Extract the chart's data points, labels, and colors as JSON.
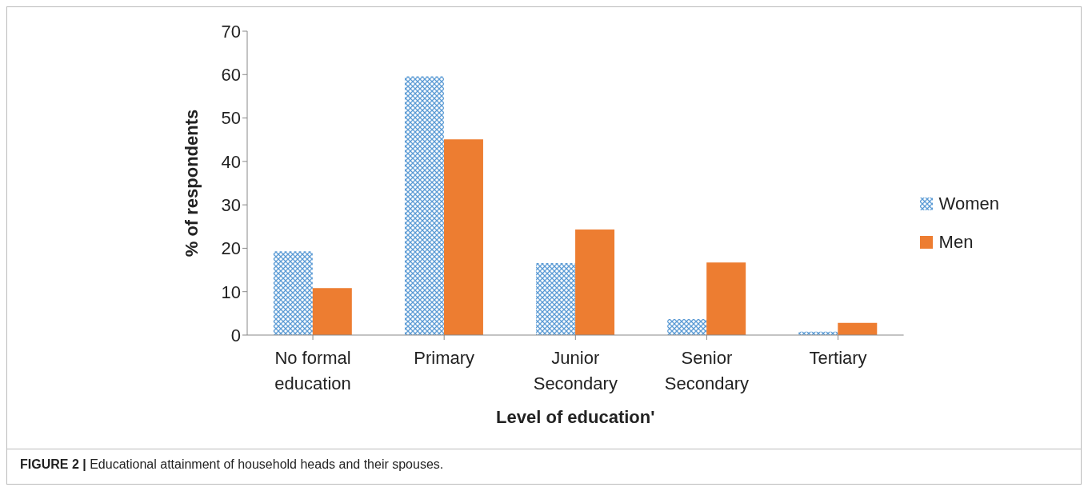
{
  "chart_data": {
    "type": "bar",
    "xlabel": "Level of education'",
    "ylabel": "% of respondents",
    "categories": [
      "No formal education",
      "Primary",
      "Junior Secondary",
      "Senior Secondary",
      "Tertiary"
    ],
    "series": [
      {
        "name": "Women",
        "color": "#5b9bd5",
        "values": [
          19.3,
          59.6,
          16.6,
          3.7,
          0.8
        ]
      },
      {
        "name": "Men",
        "color": "#ed7d31",
        "values": [
          10.8,
          45.1,
          24.3,
          16.7,
          2.8
        ]
      }
    ],
    "ylim": [
      0,
      70
    ],
    "yticks": [
      0,
      10,
      20,
      30,
      40,
      50,
      60,
      70
    ],
    "grid": false,
    "legend": "right",
    "annotations": [
      "FIGURE 2 | Educational attainment of household heads and their spouses."
    ]
  }
}
